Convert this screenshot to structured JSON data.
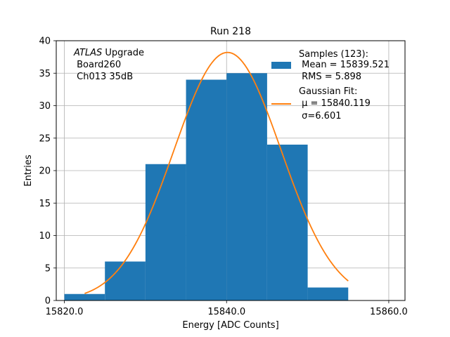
{
  "chart_data": {
    "type": "bar",
    "title": "Run 218",
    "xlabel": "Energy [ADC Counts]",
    "ylabel": "Entries",
    "xlim": [
      15819.0,
      15862.0
    ],
    "ylim": [
      0,
      40
    ],
    "xticks": [
      15820.0,
      15840.0,
      15860.0
    ],
    "xtick_labels": [
      "15820.0",
      "15840.0",
      "15860.0"
    ],
    "yticks": [
      0,
      5,
      10,
      15,
      20,
      25,
      30,
      35,
      40
    ],
    "ytick_labels": [
      "0",
      "5",
      "10",
      "15",
      "20",
      "25",
      "30",
      "35",
      "40"
    ],
    "grid": true,
    "legend_position": "upper right",
    "annotation": {
      "italic": "ATLAS",
      "line1_rest": " Upgrade",
      "line2": " Board260",
      "line3": " Ch013 35dB"
    },
    "histogram": {
      "name": "Samples (123):",
      "mean_label": " Mean = 15839.521",
      "rms_label": " RMS = 5.898",
      "color": "#1f77b4",
      "bins": [
        {
          "left": 15820.0,
          "right": 15825.0,
          "count": 1
        },
        {
          "left": 15825.0,
          "right": 15830.0,
          "count": 6
        },
        {
          "left": 15830.0,
          "right": 15835.0,
          "count": 21
        },
        {
          "left": 15835.0,
          "right": 15840.0,
          "count": 34
        },
        {
          "left": 15840.0,
          "right": 15845.0,
          "count": 35
        },
        {
          "left": 15845.0,
          "right": 15850.0,
          "count": 24
        },
        {
          "left": 15850.0,
          "right": 15855.0,
          "count": 2
        }
      ]
    },
    "fit": {
      "name": "Gaussian Fit:",
      "mu_label": " μ = 15840.119",
      "sigma_label": " σ=6.601",
      "mu": 15840.119,
      "sigma": 6.601,
      "amplitude": 38.2,
      "x_start": 15822.5,
      "x_end": 15855.0,
      "color": "#ff7f0e"
    }
  }
}
